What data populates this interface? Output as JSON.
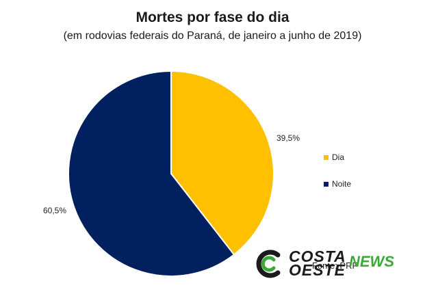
{
  "chart_data": {
    "type": "pie",
    "title": "Mortes por fase do dia",
    "subtitle": "(em rodovias federais do Paraná, de janeiro a junho de 2019)",
    "categories": [
      "Dia",
      "Noite"
    ],
    "values": [
      39.5,
      60.5
    ],
    "data_labels": [
      "39,5%",
      "60,5%"
    ],
    "colors": [
      "#FFC000",
      "#002060"
    ],
    "legend_position": "right"
  },
  "source": "Fonte: PRF",
  "watermark": {
    "line1": "COSTA",
    "line2": "OESTE",
    "news": "NEWS",
    "icon": "costa-oeste-logo-icon",
    "accent_color": "#3aa935"
  }
}
